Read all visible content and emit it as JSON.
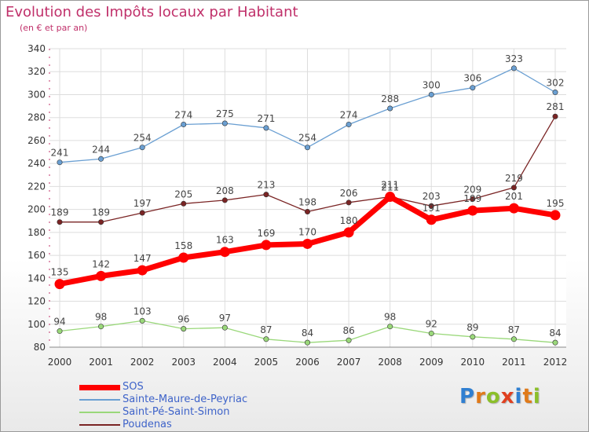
{
  "header": {
    "title": "Evolution des Impôts locaux par Habitant",
    "subtitle": "(en € et par an)"
  },
  "logo": {
    "text": "Proxiti",
    "letter_colors": [
      "#2f7fd1",
      "#e07a1a",
      "#8bbf2a",
      "#e04020",
      "#2f7fd1",
      "#e07a1a",
      "#8bbf2a"
    ]
  },
  "colors": {
    "SOS": "#ff0000",
    "Sainte-Maure-de-Peyriac": "#6a9fd2",
    "Saint-Pé-Saint-Simon": "#9ad87a",
    "Poudenas": "#7a2424",
    "grid": "#dddddd",
    "axis_text": "#333333",
    "label_text": "#444444"
  },
  "chart_data": {
    "type": "line",
    "title": "Evolution des Impôts locaux par Habitant",
    "subtitle": "(en € et par an)",
    "x": [
      "2000",
      "2001",
      "2002",
      "2003",
      "2004",
      "2005",
      "2006",
      "2007",
      "2008",
      "2009",
      "2010",
      "2011",
      "2012"
    ],
    "ylim": [
      80,
      340
    ],
    "yticks": [
      80,
      100,
      120,
      140,
      160,
      180,
      200,
      220,
      240,
      260,
      280,
      300,
      320,
      340
    ],
    "grid": true,
    "legend": "bottom-left",
    "series": [
      {
        "name": "SOS",
        "values": [
          135,
          142,
          147,
          158,
          163,
          169,
          170,
          180,
          211,
          191,
          199,
          201,
          195
        ]
      },
      {
        "name": "Sainte-Maure-de-Peyriac",
        "values": [
          241,
          244,
          254,
          274,
          275,
          271,
          254,
          274,
          288,
          300,
          306,
          323,
          302
        ]
      },
      {
        "name": "Saint-Pé-Saint-Simon",
        "values": [
          94,
          98,
          103,
          96,
          97,
          87,
          84,
          86,
          98,
          92,
          89,
          87,
          84
        ]
      },
      {
        "name": "Poudenas",
        "values": [
          189,
          189,
          197,
          205,
          208,
          213,
          198,
          206,
          211,
          203,
          209,
          219,
          281
        ]
      }
    ]
  }
}
